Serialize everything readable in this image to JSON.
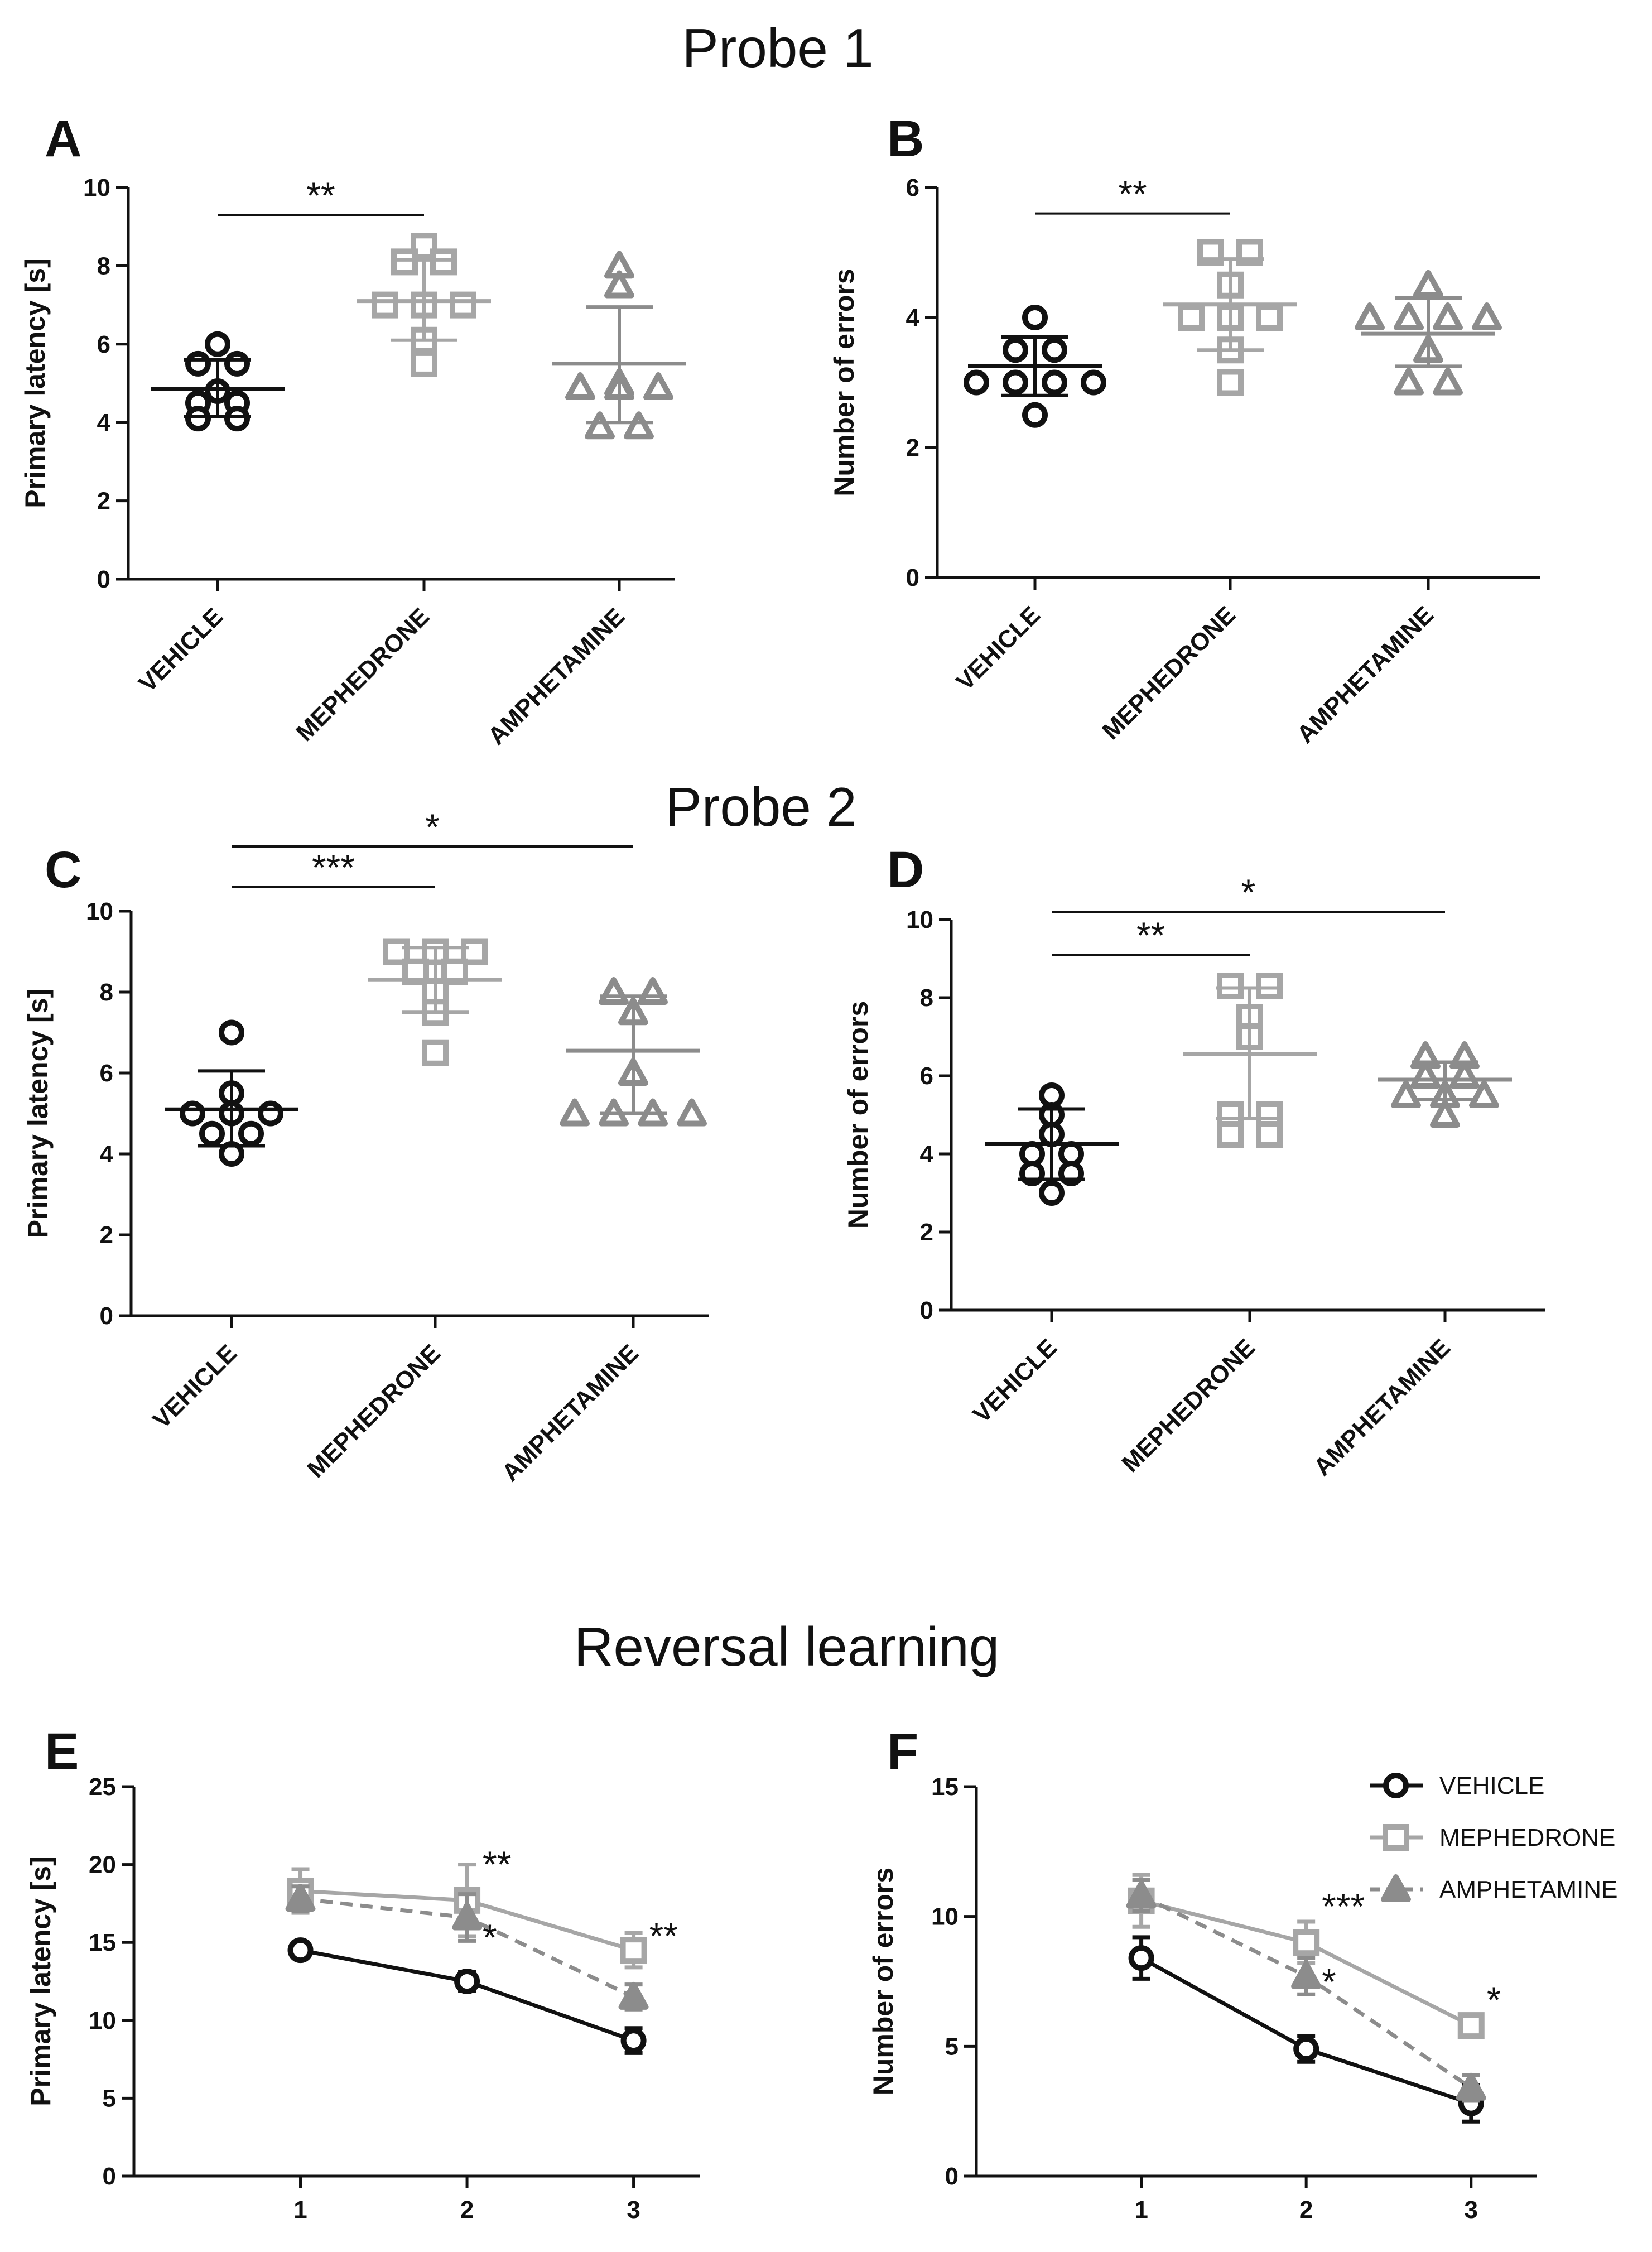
{
  "colors": {
    "vehicle": "#111111",
    "mephedrone": "#a6a6a6",
    "amphetamine": "#8c8c8c"
  },
  "section_titles": {
    "probe1": "Probe 1",
    "probe2": "Probe 2",
    "reversal": "Reversal learning"
  },
  "chart_data": [
    {
      "id": "A",
      "letter": "A",
      "section": "Probe 1",
      "type": "scatter",
      "ylabel": "Primary latency [s]",
      "ylim": [
        0,
        10
      ],
      "yticks": [
        "0",
        "2",
        "4",
        "6",
        "8",
        "10"
      ],
      "categories": [
        "VEHICLE",
        "MEPHEDRONE",
        "AMPHETAMINE"
      ],
      "groups": [
        {
          "name": "VEHICLE",
          "marker": "circle",
          "color": "#111111",
          "values": [
            6.0,
            5.5,
            5.5,
            4.5,
            4.5,
            4.1,
            4.1,
            4.8
          ],
          "mean": 4.85,
          "sd_low": 4.15,
          "sd_high": 5.6
        },
        {
          "name": "MEPHEDRONE",
          "marker": "square",
          "color": "#a6a6a6",
          "values": [
            8.5,
            8.1,
            8.1,
            7.0,
            7.0,
            7.0,
            6.1,
            5.5
          ],
          "mean": 7.1,
          "sd_low": 6.1,
          "sd_high": 8.15
        },
        {
          "name": "AMPHETAMINE",
          "marker": "triangle",
          "color": "#8c8c8c",
          "values": [
            8.0,
            7.5,
            5.0,
            4.9,
            4.9,
            4.9,
            3.9,
            3.9
          ],
          "mean": 5.5,
          "sd_low": 4.0,
          "sd_high": 6.95
        }
      ],
      "significance": [
        {
          "from": 0,
          "to": 1,
          "y": 9.3,
          "label": "**"
        }
      ]
    },
    {
      "id": "B",
      "letter": "B",
      "section": "Probe 1",
      "type": "scatter",
      "ylabel": "Number of errors",
      "ylim": [
        0,
        6
      ],
      "yticks": [
        "0",
        "2",
        "4",
        "6"
      ],
      "categories": [
        "VEHICLE",
        "MEPHEDRONE",
        "AMPHETAMINE"
      ],
      "groups": [
        {
          "name": "VEHICLE",
          "marker": "circle",
          "color": "#111111",
          "values": [
            4.0,
            3.5,
            3.5,
            3.0,
            3.0,
            3.0,
            3.0,
            2.5
          ],
          "mean": 3.25,
          "sd_low": 2.8,
          "sd_high": 3.7
        },
        {
          "name": "MEPHEDRONE",
          "marker": "square",
          "color": "#a6a6a6",
          "values": [
            5.0,
            5.0,
            4.5,
            4.0,
            4.0,
            4.0,
            3.5,
            3.0
          ],
          "mean": 4.2,
          "sd_low": 3.5,
          "sd_high": 4.9
        },
        {
          "name": "AMPHETAMINE",
          "marker": "triangle",
          "color": "#8c8c8c",
          "values": [
            4.5,
            4.0,
            4.0,
            4.0,
            4.0,
            3.5,
            3.0,
            3.0
          ],
          "mean": 3.75,
          "sd_low": 3.25,
          "sd_high": 4.3
        },
        {
          "name": "",
          "marker": "none",
          "color": "#111111",
          "values": [],
          "mean": null,
          "sd_low": null,
          "sd_high": null
        }
      ],
      "significance": [
        {
          "from": 0,
          "to": 1,
          "y": 5.6,
          "label": "**"
        }
      ]
    },
    {
      "id": "C",
      "letter": "C",
      "section": "Probe 2",
      "type": "scatter",
      "ylabel": "Primary latency [s]",
      "ylim": [
        0,
        10
      ],
      "yticks": [
        "0",
        "2",
        "4",
        "6",
        "8",
        "10"
      ],
      "categories": [
        "VEHICLE",
        "MEPHEDRONE",
        "AMPHETAMINE"
      ],
      "groups": [
        {
          "name": "VEHICLE",
          "marker": "circle",
          "color": "#111111",
          "values": [
            7.0,
            5.5,
            5.0,
            5.0,
            5.0,
            4.5,
            4.5,
            4.0
          ],
          "mean": 5.1,
          "sd_low": 4.2,
          "sd_high": 6.05
        },
        {
          "name": "MEPHEDRONE",
          "marker": "square",
          "color": "#a6a6a6",
          "values": [
            9.0,
            9.0,
            9.0,
            8.5,
            8.5,
            8.0,
            7.5,
            6.5
          ],
          "mean": 8.3,
          "sd_low": 7.5,
          "sd_high": 9.1
        },
        {
          "name": "AMPHETAMINE",
          "marker": "triangle",
          "color": "#8c8c8c",
          "values": [
            8.0,
            8.0,
            7.5,
            6.0,
            5.0,
            5.0,
            5.0,
            5.0
          ],
          "mean": 6.55,
          "sd_low": 5.0,
          "sd_high": 7.9
        }
      ],
      "significance": [
        {
          "from": 0,
          "to": 1,
          "y": 10.6,
          "label": "***"
        },
        {
          "from": 0,
          "to": 2,
          "y": 11.6,
          "label": "*"
        }
      ]
    },
    {
      "id": "D",
      "letter": "D",
      "section": "Probe 2",
      "type": "scatter",
      "ylabel": "Number of errors",
      "ylim": [
        0,
        10
      ],
      "yticks": [
        "0",
        "2",
        "4",
        "6",
        "8",
        "10"
      ],
      "categories": [
        "VEHICLE",
        "MEPHEDRONE",
        "AMPHETAMINE"
      ],
      "groups": [
        {
          "name": "VEHICLE",
          "marker": "circle",
          "color": "#111111",
          "values": [
            5.5,
            5.0,
            4.5,
            4.0,
            4.0,
            3.5,
            3.5,
            3.0
          ],
          "mean": 4.25,
          "sd_low": 3.35,
          "sd_high": 5.15
        },
        {
          "name": "MEPHEDRONE",
          "marker": "square",
          "color": "#a6a6a6",
          "values": [
            8.3,
            8.3,
            7.5,
            7.0,
            5.0,
            5.0,
            4.5,
            4.5
          ],
          "mean": 6.55,
          "sd_low": 4.9,
          "sd_high": 8.25
        },
        {
          "name": "AMPHETAMINE",
          "marker": "triangle",
          "color": "#8c8c8c",
          "values": [
            6.5,
            6.5,
            6.0,
            6.0,
            5.5,
            5.5,
            5.5,
            5.0
          ],
          "mean": 5.9,
          "sd_low": 5.4,
          "sd_high": 6.35
        }
      ],
      "significance": [
        {
          "from": 0,
          "to": 1,
          "y": 9.1,
          "label": "**"
        },
        {
          "from": 0,
          "to": 2,
          "y": 10.2,
          "label": "*"
        }
      ]
    },
    {
      "id": "E",
      "letter": "E",
      "section": "Reversal learning",
      "type": "line",
      "ylabel": "Primary latency [s]",
      "ylim": [
        0,
        25
      ],
      "yticks": [
        "0",
        "5",
        "10",
        "15",
        "20",
        "25"
      ],
      "x": [
        1,
        2,
        3
      ],
      "xticks": [
        "1",
        "2",
        "3"
      ],
      "xlim": [
        0.0,
        3.4
      ],
      "series": [
        {
          "name": "VEHICLE",
          "marker": "circle",
          "color": "#111111",
          "dashed": false,
          "values": [
            14.5,
            12.5,
            8.7
          ],
          "errors": [
            0.5,
            0.6,
            0.8
          ]
        },
        {
          "name": "MEPHEDRONE",
          "marker": "square",
          "color": "#a6a6a6",
          "dashed": false,
          "values": [
            18.3,
            17.7,
            14.5
          ],
          "errors": [
            1.4,
            2.3,
            1.1
          ]
        },
        {
          "name": "AMPHETAMINE",
          "marker": "triangle",
          "color": "#8c8c8c",
          "dashed": true,
          "values": [
            17.8,
            16.6,
            11.5
          ],
          "errors": [
            0.8,
            1.5,
            0.8
          ]
        }
      ],
      "annotations": [
        {
          "x": 2,
          "y": 19.2,
          "label": "**"
        },
        {
          "x": 2,
          "y": 14.5,
          "label": "*"
        },
        {
          "x": 3,
          "y": 14.6,
          "label": "**"
        }
      ]
    },
    {
      "id": "F",
      "letter": "F",
      "section": "Reversal learning",
      "type": "line",
      "ylabel": "Number of errors",
      "ylim": [
        0,
        15
      ],
      "yticks": [
        "0",
        "5",
        "10",
        "15"
      ],
      "x": [
        1,
        2,
        3
      ],
      "xticks": [
        "1",
        "2",
        "3"
      ],
      "xlim": [
        0.0,
        3.4
      ],
      "series": [
        {
          "name": "VEHICLE",
          "marker": "circle",
          "color": "#111111",
          "dashed": false,
          "values": [
            8.4,
            4.9,
            2.8
          ],
          "errors": [
            0.8,
            0.5,
            0.7
          ]
        },
        {
          "name": "MEPHEDRONE",
          "marker": "square",
          "color": "#a6a6a6",
          "dashed": false,
          "values": [
            10.6,
            9.0,
            5.8
          ],
          "errors": [
            1.0,
            0.8,
            0.4
          ]
        },
        {
          "name": "AMPHETAMINE",
          "marker": "triangle",
          "color": "#8c8c8c",
          "dashed": true,
          "values": [
            10.8,
            7.7,
            3.4
          ],
          "errors": [
            0.6,
            0.7,
            0.5
          ]
        }
      ],
      "annotations": [
        {
          "x": 2,
          "y": 9.9,
          "label": "***"
        },
        {
          "x": 2,
          "y": 7.0,
          "label": "*"
        },
        {
          "x": 3,
          "y": 6.3,
          "label": "*"
        }
      ],
      "legend": {
        "position": "top-right",
        "entries": [
          "VEHICLE",
          "MEPHEDRONE",
          "AMPHETAMINE"
        ]
      }
    }
  ]
}
